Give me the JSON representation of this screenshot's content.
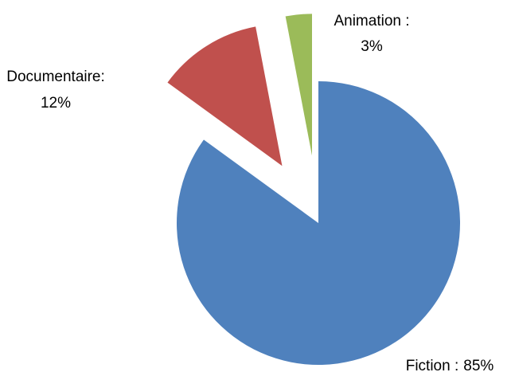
{
  "chart_data": {
    "type": "pie",
    "categories": [
      "Fiction :",
      "Documentaire:",
      "Animation :"
    ],
    "values": [
      85,
      12,
      3
    ],
    "value_labels": [
      "85%",
      "12%",
      "3%"
    ],
    "colors": [
      "#4f81bd",
      "#c0504d",
      "#9bbb59"
    ]
  }
}
